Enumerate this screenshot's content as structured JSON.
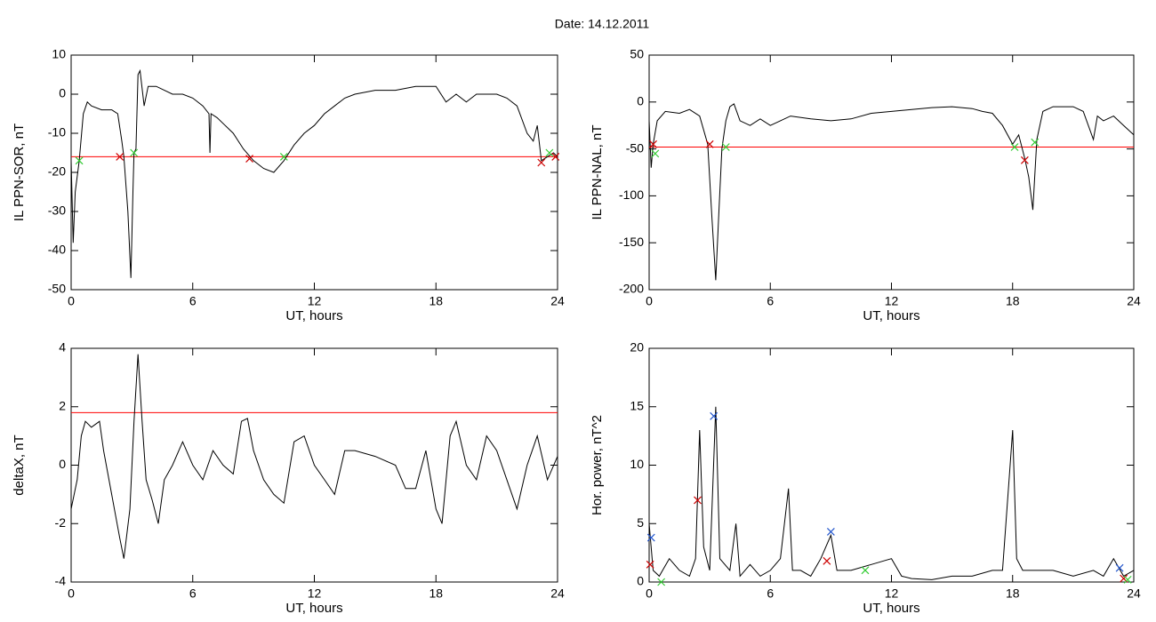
{
  "title": "Date:  14.12.2011",
  "chart_data": [
    {
      "type": "line",
      "ylabel": "IL PPN-SOR, nT",
      "xlabel": "UT, hours",
      "xlim": [
        0,
        24
      ],
      "xticks": [
        0,
        6,
        12,
        18,
        24
      ],
      "ylim": [
        -50,
        10
      ],
      "yticks": [
        -50,
        -40,
        -30,
        -20,
        -10,
        0,
        10
      ],
      "series": [
        {
          "color": "#000000",
          "x": [
            0,
            0.1,
            0.2,
            0.4,
            0.6,
            0.8,
            1.0,
            1.5,
            2.0,
            2.3,
            2.5,
            2.6,
            2.8,
            2.95,
            3.05,
            3.1,
            3.2,
            3.3,
            3.4,
            3.6,
            3.8,
            4.2,
            4.6,
            5.0,
            5.5,
            6.0,
            6.5,
            6.8,
            6.85,
            6.9,
            7.2,
            7.6,
            8.0,
            8.5,
            9.0,
            9.5,
            10.0,
            10.5,
            11.0,
            11.5,
            12,
            12.5,
            13,
            13.5,
            14,
            15,
            16,
            17,
            18,
            18.5,
            19,
            19.5,
            20,
            21,
            21.5,
            22,
            22.5,
            22.8,
            23,
            23.2,
            23.5,
            23.8,
            24
          ],
          "values": [
            -17,
            -38,
            -25,
            -17,
            -5,
            -2,
            -3,
            -4,
            -4,
            -5,
            -12,
            -16,
            -30,
            -47,
            -25,
            -15,
            -14,
            5,
            6,
            -3,
            2,
            2,
            1,
            0,
            0,
            -1,
            -3,
            -5,
            -15,
            -5,
            -6,
            -8,
            -10,
            -14,
            -17,
            -19,
            -20,
            -17,
            -13,
            -10,
            -8,
            -5,
            -3,
            -1,
            0,
            1,
            1,
            2,
            2,
            -2,
            0,
            -2,
            0,
            0,
            -1,
            -3,
            -10,
            -12,
            -8,
            -17,
            -16,
            -15,
            -16
          ]
        }
      ],
      "threshold": {
        "value": -16,
        "color": "#ff0000"
      },
      "markers": [
        {
          "color": "#cc0000",
          "x": [
            2.4,
            8.8,
            23.2,
            23.9
          ],
          "values": [
            -16,
            -16.5,
            -17.5,
            -16
          ]
        },
        {
          "color": "#33cc33",
          "x": [
            0.4,
            3.1,
            10.5,
            23.6
          ],
          "values": [
            -17,
            -15,
            -16,
            -15
          ]
        }
      ]
    },
    {
      "type": "line",
      "ylabel": "IL PPN-NAL, nT",
      "xlabel": "UT, hours",
      "xlim": [
        0,
        24
      ],
      "xticks": [
        0,
        6,
        12,
        18,
        24
      ],
      "ylim": [
        -200,
        50
      ],
      "yticks": [
        -200,
        -150,
        -100,
        -50,
        0,
        50
      ],
      "series": [
        {
          "color": "#000000",
          "x": [
            0,
            0.1,
            0.2,
            0.4,
            0.8,
            1.5,
            2.0,
            2.5,
            2.9,
            3.1,
            3.3,
            3.45,
            3.6,
            3.8,
            4.0,
            4.2,
            4.5,
            5,
            5.5,
            6,
            6.5,
            7,
            8,
            9,
            10,
            11,
            12,
            13,
            14,
            15,
            16,
            16.5,
            17,
            17.5,
            18,
            18.3,
            18.6,
            18.8,
            19.0,
            19.2,
            19.5,
            20,
            21,
            21.5,
            22,
            22.2,
            22.5,
            23,
            23.5,
            24
          ],
          "values": [
            -20,
            -70,
            -45,
            -20,
            -10,
            -12,
            -8,
            -15,
            -45,
            -120,
            -190,
            -120,
            -50,
            -20,
            -5,
            -2,
            -20,
            -25,
            -18,
            -25,
            -20,
            -15,
            -18,
            -20,
            -18,
            -12,
            -10,
            -8,
            -6,
            -5,
            -7,
            -10,
            -12,
            -25,
            -45,
            -35,
            -60,
            -80,
            -115,
            -40,
            -10,
            -5,
            -5,
            -10,
            -40,
            -15,
            -20,
            -15,
            -25,
            -35
          ]
        }
      ],
      "threshold": {
        "value": -48,
        "color": "#ff0000"
      },
      "markers": [
        {
          "color": "#cc0000",
          "x": [
            0.2,
            3.0,
            18.6
          ],
          "values": [
            -45,
            -45,
            -62
          ]
        },
        {
          "color": "#33cc33",
          "x": [
            0.3,
            3.8,
            18.1,
            19.1
          ],
          "values": [
            -55,
            -48,
            -48,
            -43
          ]
        }
      ]
    },
    {
      "type": "line",
      "ylabel": "deltaX, nT",
      "xlabel": "UT, hours",
      "xlim": [
        0,
        24
      ],
      "xticks": [
        0,
        6,
        12,
        18,
        24
      ],
      "ylim": [
        -4,
        4
      ],
      "yticks": [
        -4,
        -2,
        0,
        2,
        4
      ],
      "series": [
        {
          "color": "#000000",
          "x": [
            0,
            0.3,
            0.5,
            0.7,
            1.0,
            1.4,
            1.6,
            2.0,
            2.4,
            2.6,
            2.9,
            3.1,
            3.3,
            3.5,
            3.7,
            4.0,
            4.3,
            4.6,
            5.0,
            5.5,
            6.0,
            6.5,
            7.0,
            7.5,
            8.0,
            8.4,
            8.7,
            9.0,
            9.5,
            10,
            10.5,
            11,
            11.5,
            12,
            12.5,
            13,
            13.5,
            14,
            15,
            16,
            16.5,
            17,
            17.5,
            18,
            18.3,
            18.7,
            19,
            19.5,
            20,
            20.5,
            21,
            21.5,
            22,
            22.5,
            23,
            23.5,
            24
          ],
          "values": [
            -1.5,
            -0.5,
            1,
            1.5,
            1.3,
            1.5,
            0.5,
            -1,
            -2.5,
            -3.2,
            -1.5,
            1.5,
            3.8,
            1.5,
            -0.5,
            -1.2,
            -2,
            -0.5,
            0,
            0.8,
            0,
            -0.5,
            0.5,
            0,
            -0.3,
            1.5,
            1.6,
            0.5,
            -0.5,
            -1,
            -1.3,
            0.8,
            1,
            0,
            -0.5,
            -1,
            0.5,
            0.5,
            0.3,
            0,
            -0.8,
            -0.8,
            0.5,
            -1.5,
            -2,
            1,
            1.5,
            0,
            -0.5,
            1,
            0.5,
            -0.5,
            -1.5,
            0,
            1,
            -0.5,
            0.3
          ]
        }
      ],
      "threshold": {
        "value": 1.8,
        "color": "#ff0000"
      },
      "markers": []
    },
    {
      "type": "line",
      "ylabel": "Hor. power, nT^2",
      "xlabel": "UT, hours",
      "xlim": [
        0,
        24
      ],
      "xticks": [
        0,
        6,
        12,
        18,
        24
      ],
      "ylim": [
        0,
        20
      ],
      "yticks": [
        0,
        5,
        10,
        15,
        20
      ],
      "series": [
        {
          "color": "#000000",
          "x": [
            0,
            0.2,
            0.5,
            1,
            1.5,
            2,
            2.3,
            2.5,
            2.7,
            3.0,
            3.3,
            3.5,
            4,
            4.3,
            4.5,
            5,
            5.5,
            6,
            6.5,
            6.9,
            7.1,
            7.5,
            8,
            8.5,
            9,
            9.3,
            10,
            11,
            12,
            12.5,
            13,
            14,
            15,
            16,
            17,
            17.5,
            18,
            18.2,
            18.5,
            19,
            20,
            21,
            22,
            22.5,
            23,
            23.5,
            24
          ],
          "values": [
            5,
            1,
            0.5,
            2,
            1,
            0.5,
            2,
            13,
            3,
            1,
            15,
            2,
            1,
            5,
            0.5,
            1.5,
            0.5,
            1,
            2,
            8,
            1,
            1,
            0.5,
            2,
            4,
            1,
            1,
            1.5,
            2,
            0.5,
            0.3,
            0.2,
            0.5,
            0.5,
            1,
            1,
            13,
            2,
            1,
            1,
            1,
            0.5,
            1,
            0.5,
            2,
            0.5,
            1
          ]
        }
      ],
      "markers": [
        {
          "color": "#cc0000",
          "x": [
            0.05,
            2.4,
            8.8,
            23.5
          ],
          "values": [
            1.5,
            7,
            1.8,
            0.3
          ]
        },
        {
          "color": "#2255cc",
          "x": [
            0.1,
            3.2,
            9.0,
            23.3
          ],
          "values": [
            3.8,
            14.2,
            4.3,
            1.2
          ]
        },
        {
          "color": "#33cc33",
          "x": [
            0.6,
            10.7,
            23.7
          ],
          "values": [
            0,
            1,
            0.2
          ]
        }
      ]
    }
  ]
}
